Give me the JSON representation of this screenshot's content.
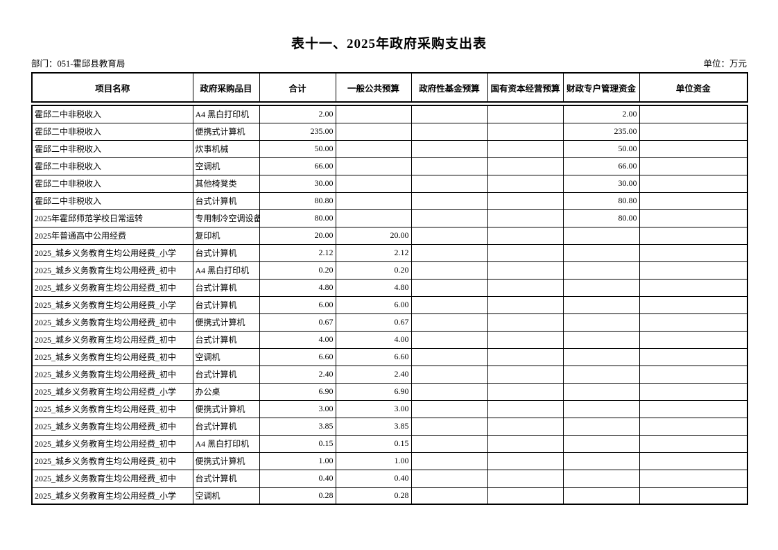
{
  "page": {
    "title": "表十一、2025年政府采购支出表",
    "department": "部门：051-霍邱县教育局",
    "unit": "单位：万元"
  },
  "table": {
    "columns": [
      "项目名称",
      "政府采购品目",
      "合计",
      "一般公共预算",
      "政府性基金预算",
      "国有资本经营预算",
      "财政专户管理资金",
      "单位资金"
    ],
    "rows": [
      [
        "霍邱二中非税收入",
        "A4 黑白打印机",
        "2.00",
        "",
        "",
        "",
        "2.00",
        ""
      ],
      [
        "霍邱二中非税收入",
        "便携式计算机",
        "235.00",
        "",
        "",
        "",
        "235.00",
        ""
      ],
      [
        "霍邱二中非税收入",
        "炊事机械",
        "50.00",
        "",
        "",
        "",
        "50.00",
        ""
      ],
      [
        "霍邱二中非税收入",
        "空调机",
        "66.00",
        "",
        "",
        "",
        "66.00",
        ""
      ],
      [
        "霍邱二中非税收入",
        "其他椅凳类",
        "30.00",
        "",
        "",
        "",
        "30.00",
        ""
      ],
      [
        "霍邱二中非税收入",
        "台式计算机",
        "80.80",
        "",
        "",
        "",
        "80.80",
        ""
      ],
      [
        "2025年霍邱师范学校日常运转",
        "专用制冷空调设备",
        "80.00",
        "",
        "",
        "",
        "80.00",
        ""
      ],
      [
        "2025年普通高中公用经费",
        "复印机",
        "20.00",
        "20.00",
        "",
        "",
        "",
        ""
      ],
      [
        "2025_城乡义务教育生均公用经费_小学",
        "台式计算机",
        "2.12",
        "2.12",
        "",
        "",
        "",
        ""
      ],
      [
        "2025_城乡义务教育生均公用经费_初中",
        "A4 黑白打印机",
        "0.20",
        "0.20",
        "",
        "",
        "",
        ""
      ],
      [
        "2025_城乡义务教育生均公用经费_初中",
        "台式计算机",
        "4.80",
        "4.80",
        "",
        "",
        "",
        ""
      ],
      [
        "2025_城乡义务教育生均公用经费_小学",
        "台式计算机",
        "6.00",
        "6.00",
        "",
        "",
        "",
        ""
      ],
      [
        "2025_城乡义务教育生均公用经费_初中",
        "便携式计算机",
        "0.67",
        "0.67",
        "",
        "",
        "",
        ""
      ],
      [
        "2025_城乡义务教育生均公用经费_初中",
        "台式计算机",
        "4.00",
        "4.00",
        "",
        "",
        "",
        ""
      ],
      [
        "2025_城乡义务教育生均公用经费_初中",
        "空调机",
        "6.60",
        "6.60",
        "",
        "",
        "",
        ""
      ],
      [
        "2025_城乡义务教育生均公用经费_初中",
        "台式计算机",
        "2.40",
        "2.40",
        "",
        "",
        "",
        ""
      ],
      [
        "2025_城乡义务教育生均公用经费_小学",
        "办公桌",
        "6.90",
        "6.90",
        "",
        "",
        "",
        ""
      ],
      [
        "2025_城乡义务教育生均公用经费_初中",
        "便携式计算机",
        "3.00",
        "3.00",
        "",
        "",
        "",
        ""
      ],
      [
        "2025_城乡义务教育生均公用经费_初中",
        "台式计算机",
        "3.85",
        "3.85",
        "",
        "",
        "",
        ""
      ],
      [
        "2025_城乡义务教育生均公用经费_初中",
        "A4 黑白打印机",
        "0.15",
        "0.15",
        "",
        "",
        "",
        ""
      ],
      [
        "2025_城乡义务教育生均公用经费_初中",
        "便携式计算机",
        "1.00",
        "1.00",
        "",
        "",
        "",
        ""
      ],
      [
        "2025_城乡义务教育生均公用经费_初中",
        "台式计算机",
        "0.40",
        "0.40",
        "",
        "",
        "",
        ""
      ],
      [
        "2025_城乡义务教育生均公用经费_小学",
        "空调机",
        "0.28",
        "0.28",
        "",
        "",
        "",
        ""
      ]
    ]
  }
}
